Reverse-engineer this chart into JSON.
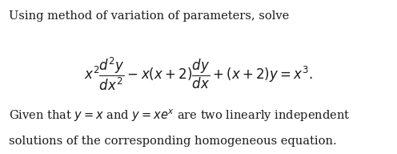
{
  "bg_color": "#ffffff",
  "text_color": "#1a1a1a",
  "line1": "Using method of variation of parameters, solve",
  "line3_math": "Given that $y = x$ and $y = xe^{x}$ are two linearly independent",
  "line4": "solutions of the corresponding homogeneous equation.",
  "fontsize_text": 10.5,
  "fontsize_eq": 12.0,
  "fig_width": 4.96,
  "fig_height": 1.92,
  "dpi": 100
}
